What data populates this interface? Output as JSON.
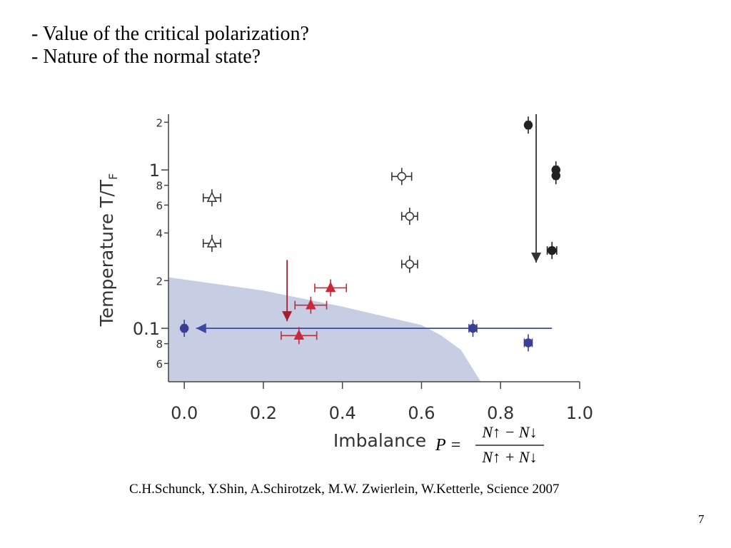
{
  "slide": {
    "bullets": [
      "- Value of the critical polarization?",
      "- Nature of the normal state?"
    ],
    "citation": "C.H.Schunck, Y.Shin, A.Schirotzek, M.W. Zwierlein, W.Ketterle, Science 2007",
    "page": "7"
  },
  "chart_data": {
    "type": "scatter",
    "y_label": "Temperature T/T",
    "y_label_sub": "F",
    "x_label": "Imbalance",
    "formula": {
      "lhs": "P =",
      "numerator": "N↑ − N↓",
      "denominator": "N↑ + N↓"
    },
    "xlim": [
      -0.04,
      1.0
    ],
    "ylim": [
      0.046,
      2.25
    ],
    "log_y": true,
    "xticks": [
      {
        "value": 0,
        "label": "0.0"
      },
      {
        "value": 0.2,
        "label": "0.2"
      },
      {
        "value": 0.4,
        "label": "0.4"
      },
      {
        "value": 0.6,
        "label": "0.6"
      },
      {
        "value": 0.8,
        "label": "0.8"
      },
      {
        "value": 1.0,
        "label": "1.0"
      }
    ],
    "yticks": [
      {
        "value": 0.06,
        "label": "6"
      },
      {
        "value": 0.08,
        "label": "8"
      },
      0.1,
      {
        "value": 0.2,
        "label": "2"
      },
      {
        "value": 0.4,
        "label": "4"
      },
      {
        "value": 0.6,
        "label": "6"
      },
      {
        "value": 0.8,
        "label": "8"
      },
      1,
      2
    ],
    "region": {
      "color": "#c7cde2",
      "x": [
        -0.04,
        0.2,
        0.4,
        0.6,
        0.65,
        0.7,
        0.75
      ],
      "values": [
        0.21,
        0.173,
        0.137,
        0.105,
        0.09,
        0.073,
        0.046
      ]
    },
    "series": [
      {
        "color": "#333333",
        "marker": "triangle-open",
        "x": [
          0.07,
          0.07
        ],
        "values": [
          0.667,
          0.344
        ],
        "xerr": [
          0.022,
          0.022
        ]
      },
      {
        "color": "#333333",
        "marker": "circle-open",
        "x": [
          0.55,
          0.57,
          0.57
        ],
        "values": [
          0.91,
          0.51,
          0.254
        ],
        "xerr": [
          0.025,
          0.02,
          0.02
        ]
      },
      {
        "color": "#222222",
        "marker": "circle",
        "x": [
          0.87,
          0.94,
          0.94,
          0.93
        ],
        "values": [
          1.92,
          1.0,
          0.92,
          0.31
        ],
        "xerr": [
          0.005,
          0.005,
          0.005,
          0.012
        ]
      },
      {
        "color": "#c8283a",
        "marker": "triangle",
        "x": [
          0.37,
          0.32,
          0.29
        ],
        "values": [
          0.18,
          0.14,
          0.09
        ],
        "xerr": [
          0.04,
          0.04,
          0.045
        ]
      },
      {
        "color": "#3a3f94",
        "marker": "circle",
        "x": [
          0.0,
          0.73,
          0.87
        ],
        "values": [
          0.1,
          0.1,
          0.081
        ],
        "xerr": [
          0.005,
          0.01,
          0.01
        ]
      }
    ],
    "arrows": [
      {
        "color": "#333333",
        "x": [
          0.89,
          0.89
        ],
        "values": [
          2.25,
          0.26
        ]
      },
      {
        "color": "#a02030",
        "x": [
          0.26,
          0.26
        ],
        "values": [
          0.27,
          0.111
        ]
      },
      {
        "color": "#3a4aa0",
        "x": [
          0.93,
          0.03
        ],
        "values": [
          0.1,
          0.1
        ]
      }
    ]
  }
}
